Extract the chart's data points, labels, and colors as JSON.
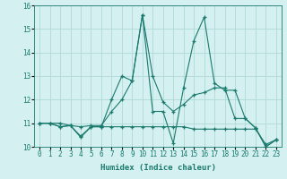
{
  "xlabel": "Humidex (Indice chaleur)",
  "bg_color": "#d4f0f0",
  "line_color": "#1a7a6e",
  "grid_color": "#b0d8d8",
  "xlim": [
    -0.5,
    23.5
  ],
  "ylim": [
    10,
    16
  ],
  "yticks": [
    10,
    11,
    12,
    13,
    14,
    15,
    16
  ],
  "xticks": [
    0,
    1,
    2,
    3,
    4,
    5,
    6,
    7,
    8,
    9,
    10,
    11,
    12,
    13,
    14,
    15,
    16,
    17,
    18,
    19,
    20,
    21,
    22,
    23
  ],
  "lines": [
    {
      "x": [
        0,
        1,
        2,
        3,
        4,
        5,
        6,
        7,
        8,
        9,
        10,
        11,
        12,
        13,
        14,
        15,
        16,
        17,
        18,
        19,
        20,
        21,
        22,
        23
      ],
      "y": [
        11,
        11,
        10.85,
        10.9,
        10.45,
        10.85,
        10.85,
        10.85,
        10.85,
        10.85,
        10.85,
        10.85,
        10.85,
        10.85,
        10.85,
        10.75,
        10.75,
        10.75,
        10.75,
        10.75,
        10.75,
        10.75,
        10.1,
        10.3
      ]
    },
    {
      "x": [
        0,
        1,
        2,
        3,
        4,
        5,
        6,
        7,
        8,
        9,
        10,
        11,
        12,
        13,
        14,
        15,
        16,
        17,
        18,
        19,
        20,
        21,
        22,
        23
      ],
      "y": [
        11,
        11,
        11,
        10.9,
        10.85,
        10.9,
        10.9,
        11.5,
        12.0,
        12.8,
        15.6,
        13.0,
        11.9,
        11.5,
        11.8,
        12.2,
        12.3,
        12.5,
        12.5,
        11.2,
        11.2,
        10.8,
        10.0,
        10.3
      ]
    },
    {
      "x": [
        0,
        1,
        2,
        3,
        4,
        5,
        6,
        7,
        8,
        9,
        10,
        11,
        12,
        13,
        14,
        15,
        16,
        17,
        18,
        19,
        20,
        21,
        22,
        23
      ],
      "y": [
        11,
        11,
        10.85,
        10.9,
        10.4,
        10.85,
        10.85,
        12.0,
        13.0,
        12.8,
        15.6,
        11.5,
        11.5,
        10.15,
        12.5,
        14.5,
        15.5,
        12.7,
        12.4,
        12.4,
        11.2,
        10.8,
        10.0,
        10.3
      ]
    }
  ]
}
